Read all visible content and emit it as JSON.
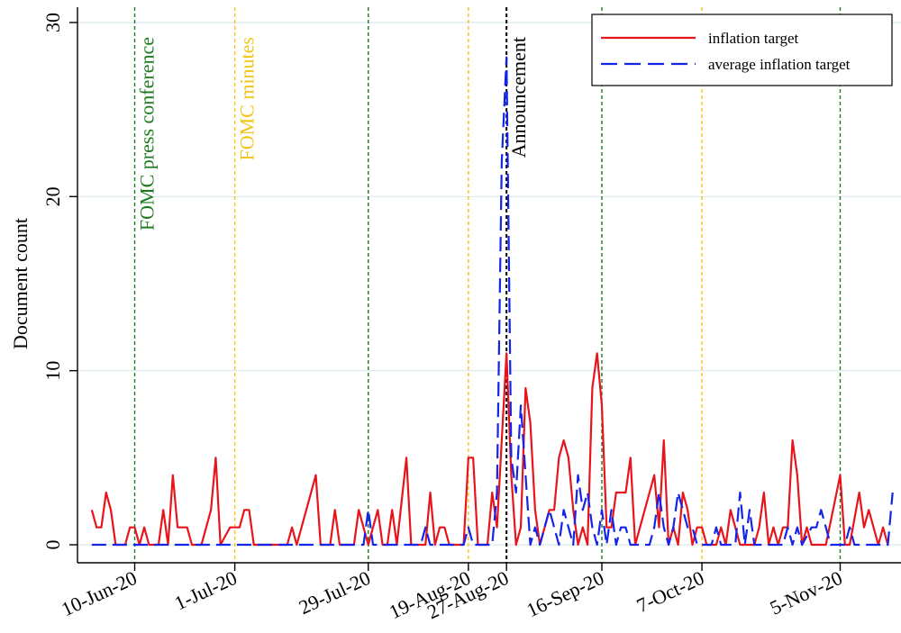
{
  "chart_data": {
    "type": "line",
    "ylabel": "Document count",
    "ylim": [
      0,
      30
    ],
    "yticks": [
      0,
      10,
      20,
      30
    ],
    "x_dates": [
      "2020-06-01",
      "2020-11-20"
    ],
    "xtick_labels": [
      {
        "date": "2020-06-10",
        "label": "10-Jun-20"
      },
      {
        "date": "2020-07-01",
        "label": "1-Jul-20"
      },
      {
        "date": "2020-07-29",
        "label": "29-Jul-20"
      },
      {
        "date": "2020-08-19",
        "label": "19-Aug-20"
      },
      {
        "date": "2020-08-27",
        "label": "27-Aug-20"
      },
      {
        "date": "2020-09-16",
        "label": "16-Sep-20"
      },
      {
        "date": "2020-10-07",
        "label": "7-Oct-20"
      },
      {
        "date": "2020-11-05",
        "label": "5-Nov-20"
      }
    ],
    "vlines": [
      {
        "date": "2020-06-10",
        "kind": "press",
        "color": "#1e7a1e",
        "label": "FOMC press conference"
      },
      {
        "date": "2020-07-01",
        "kind": "minutes",
        "color": "#f2c417",
        "label": "FOMC minutes"
      },
      {
        "date": "2020-07-29",
        "kind": "press",
        "color": "#1e7a1e",
        "label": ""
      },
      {
        "date": "2020-08-19",
        "kind": "minutes",
        "color": "#f2c417",
        "label": ""
      },
      {
        "date": "2020-08-27",
        "kind": "announcement",
        "color": "#000000",
        "label": "Announcement"
      },
      {
        "date": "2020-09-16",
        "kind": "press",
        "color": "#1e7a1e",
        "label": ""
      },
      {
        "date": "2020-10-07",
        "kind": "minutes",
        "color": "#f2c417",
        "label": ""
      },
      {
        "date": "2020-11-05",
        "kind": "press",
        "color": "#1e7a1e",
        "label": ""
      }
    ],
    "series": [
      {
        "name": "inflation target",
        "color": "#e8141b",
        "style": "solid",
        "points": [
          [
            "2020-06-01",
            2
          ],
          [
            "2020-06-02",
            1
          ],
          [
            "2020-06-03",
            1
          ],
          [
            "2020-06-04",
            3
          ],
          [
            "2020-06-05",
            2
          ],
          [
            "2020-06-06",
            0
          ],
          [
            "2020-06-08",
            0
          ],
          [
            "2020-06-09",
            1
          ],
          [
            "2020-06-10",
            1
          ],
          [
            "2020-06-11",
            0
          ],
          [
            "2020-06-12",
            1
          ],
          [
            "2020-06-13",
            0
          ],
          [
            "2020-06-15",
            0
          ],
          [
            "2020-06-16",
            2
          ],
          [
            "2020-06-17",
            0
          ],
          [
            "2020-06-18",
            4
          ],
          [
            "2020-06-19",
            1
          ],
          [
            "2020-06-21",
            1
          ],
          [
            "2020-06-22",
            0
          ],
          [
            "2020-06-24",
            0
          ],
          [
            "2020-06-26",
            2
          ],
          [
            "2020-06-27",
            5
          ],
          [
            "2020-06-28",
            0
          ],
          [
            "2020-06-30",
            1
          ],
          [
            "2020-07-02",
            1
          ],
          [
            "2020-07-03",
            2
          ],
          [
            "2020-07-04",
            2
          ],
          [
            "2020-07-05",
            0
          ],
          [
            "2020-07-12",
            0
          ],
          [
            "2020-07-13",
            1
          ],
          [
            "2020-07-14",
            0
          ],
          [
            "2020-07-18",
            4
          ],
          [
            "2020-07-19",
            0
          ],
          [
            "2020-07-21",
            0
          ],
          [
            "2020-07-22",
            2
          ],
          [
            "2020-07-23",
            0
          ],
          [
            "2020-07-26",
            0
          ],
          [
            "2020-07-27",
            2
          ],
          [
            "2020-07-28",
            1
          ],
          [
            "2020-07-29",
            0
          ],
          [
            "2020-07-31",
            2
          ],
          [
            "2020-08-01",
            0
          ],
          [
            "2020-08-02",
            0
          ],
          [
            "2020-08-03",
            2
          ],
          [
            "2020-08-04",
            0
          ],
          [
            "2020-08-06",
            5
          ],
          [
            "2020-08-07",
            0
          ],
          [
            "2020-08-10",
            0
          ],
          [
            "2020-08-11",
            3
          ],
          [
            "2020-08-12",
            0
          ],
          [
            "2020-08-13",
            1
          ],
          [
            "2020-08-14",
            1
          ],
          [
            "2020-08-15",
            0
          ],
          [
            "2020-08-18",
            0
          ],
          [
            "2020-08-19",
            5
          ],
          [
            "2020-08-20",
            5
          ],
          [
            "2020-08-21",
            0
          ],
          [
            "2020-08-23",
            0
          ],
          [
            "2020-08-24",
            3
          ],
          [
            "2020-08-25",
            1
          ],
          [
            "2020-08-27",
            11
          ],
          [
            "2020-08-28",
            4
          ],
          [
            "2020-08-29",
            0
          ],
          [
            "2020-08-30",
            1
          ],
          [
            "2020-08-31",
            9
          ],
          [
            "2020-09-01",
            7
          ],
          [
            "2020-09-02",
            2
          ],
          [
            "2020-09-03",
            0
          ],
          [
            "2020-09-04",
            1
          ],
          [
            "2020-09-05",
            2
          ],
          [
            "2020-09-06",
            2
          ],
          [
            "2020-09-07",
            5
          ],
          [
            "2020-09-08",
            6
          ],
          [
            "2020-09-09",
            5
          ],
          [
            "2020-09-10",
            2
          ],
          [
            "2020-09-11",
            0
          ],
          [
            "2020-09-12",
            1
          ],
          [
            "2020-09-13",
            0
          ],
          [
            "2020-09-14",
            9
          ],
          [
            "2020-09-15",
            11
          ],
          [
            "2020-09-16",
            8
          ],
          [
            "2020-09-17",
            1
          ],
          [
            "2020-09-18",
            1
          ],
          [
            "2020-09-19",
            3
          ],
          [
            "2020-09-20",
            3
          ],
          [
            "2020-09-21",
            3
          ],
          [
            "2020-09-22",
            5
          ],
          [
            "2020-09-23",
            0
          ],
          [
            "2020-09-25",
            2
          ],
          [
            "2020-09-26",
            3
          ],
          [
            "2020-09-27",
            4
          ],
          [
            "2020-09-28",
            1
          ],
          [
            "2020-09-29",
            6
          ],
          [
            "2020-09-30",
            0
          ],
          [
            "2020-10-01",
            1
          ],
          [
            "2020-10-02",
            0
          ],
          [
            "2020-10-03",
            3
          ],
          [
            "2020-10-04",
            2
          ],
          [
            "2020-10-05",
            0
          ],
          [
            "2020-10-06",
            1
          ],
          [
            "2020-10-07",
            1
          ],
          [
            "2020-10-08",
            0
          ],
          [
            "2020-10-10",
            0
          ],
          [
            "2020-10-11",
            1
          ],
          [
            "2020-10-12",
            0
          ],
          [
            "2020-10-13",
            2
          ],
          [
            "2020-10-14",
            1
          ],
          [
            "2020-10-15",
            0
          ],
          [
            "2020-10-18",
            0
          ],
          [
            "2020-10-19",
            1
          ],
          [
            "2020-10-20",
            3
          ],
          [
            "2020-10-21",
            0
          ],
          [
            "2020-10-22",
            1
          ],
          [
            "2020-10-23",
            0
          ],
          [
            "2020-10-24",
            1
          ],
          [
            "2020-10-25",
            1
          ],
          [
            "2020-10-26",
            6
          ],
          [
            "2020-10-27",
            4
          ],
          [
            "2020-10-28",
            0
          ],
          [
            "2020-10-29",
            1
          ],
          [
            "2020-10-30",
            0
          ],
          [
            "2020-11-02",
            0
          ],
          [
            "2020-11-05",
            4
          ],
          [
            "2020-11-06",
            0
          ],
          [
            "2020-11-07",
            0
          ],
          [
            "2020-11-09",
            3
          ],
          [
            "2020-11-10",
            1
          ],
          [
            "2020-11-11",
            2
          ],
          [
            "2020-11-13",
            0
          ],
          [
            "2020-11-14",
            1
          ],
          [
            "2020-11-15",
            0
          ]
        ]
      },
      {
        "name": "average inflation target",
        "color": "#1424e8",
        "style": "dashed",
        "points": [
          [
            "2020-06-01",
            0
          ],
          [
            "2020-07-28",
            0
          ],
          [
            "2020-07-29",
            2
          ],
          [
            "2020-07-30",
            0
          ],
          [
            "2020-08-09",
            0
          ],
          [
            "2020-08-10",
            1
          ],
          [
            "2020-08-11",
            0
          ],
          [
            "2020-08-18",
            0
          ],
          [
            "2020-08-19",
            1
          ],
          [
            "2020-08-20",
            0
          ],
          [
            "2020-08-24",
            0
          ],
          [
            "2020-08-25",
            3
          ],
          [
            "2020-08-26",
            22
          ],
          [
            "2020-08-27",
            28
          ],
          [
            "2020-08-28",
            5
          ],
          [
            "2020-08-29",
            3
          ],
          [
            "2020-08-30",
            8
          ],
          [
            "2020-08-31",
            4
          ],
          [
            "2020-09-01",
            0
          ],
          [
            "2020-09-02",
            1
          ],
          [
            "2020-09-03",
            0
          ],
          [
            "2020-09-04",
            1
          ],
          [
            "2020-09-05",
            2
          ],
          [
            "2020-09-06",
            1
          ],
          [
            "2020-09-07",
            0
          ],
          [
            "2020-09-08",
            2
          ],
          [
            "2020-09-09",
            1
          ],
          [
            "2020-09-10",
            0
          ],
          [
            "2020-09-11",
            4
          ],
          [
            "2020-09-12",
            2
          ],
          [
            "2020-09-13",
            3
          ],
          [
            "2020-09-14",
            1
          ],
          [
            "2020-09-15",
            0
          ],
          [
            "2020-09-16",
            2
          ],
          [
            "2020-09-17",
            0
          ],
          [
            "2020-09-18",
            2
          ],
          [
            "2020-09-19",
            0
          ],
          [
            "2020-09-20",
            1
          ],
          [
            "2020-09-21",
            1
          ],
          [
            "2020-09-22",
            0
          ],
          [
            "2020-09-26",
            0
          ],
          [
            "2020-09-27",
            1
          ],
          [
            "2020-09-28",
            3
          ],
          [
            "2020-09-29",
            1
          ],
          [
            "2020-09-30",
            0
          ],
          [
            "2020-10-01",
            1
          ],
          [
            "2020-10-02",
            3
          ],
          [
            "2020-10-03",
            2
          ],
          [
            "2020-10-04",
            1
          ],
          [
            "2020-10-05",
            1
          ],
          [
            "2020-10-06",
            0
          ],
          [
            "2020-10-09",
            0
          ],
          [
            "2020-10-10",
            1
          ],
          [
            "2020-10-11",
            0
          ],
          [
            "2020-10-14",
            0
          ],
          [
            "2020-10-15",
            3
          ],
          [
            "2020-10-16",
            0
          ],
          [
            "2020-10-17",
            2
          ],
          [
            "2020-10-18",
            0
          ],
          [
            "2020-10-24",
            0
          ],
          [
            "2020-10-25",
            1
          ],
          [
            "2020-10-26",
            0
          ],
          [
            "2020-10-27",
            1
          ],
          [
            "2020-10-28",
            0
          ],
          [
            "2020-10-30",
            1
          ],
          [
            "2020-10-31",
            1
          ],
          [
            "2020-11-01",
            2
          ],
          [
            "2020-11-02",
            1
          ],
          [
            "2020-11-03",
            0
          ],
          [
            "2020-11-06",
            0
          ],
          [
            "2020-11-07",
            1
          ],
          [
            "2020-11-08",
            0
          ],
          [
            "2020-11-15",
            0
          ],
          [
            "2020-11-16",
            3
          ]
        ]
      }
    ],
    "legend_position": "top-right"
  }
}
